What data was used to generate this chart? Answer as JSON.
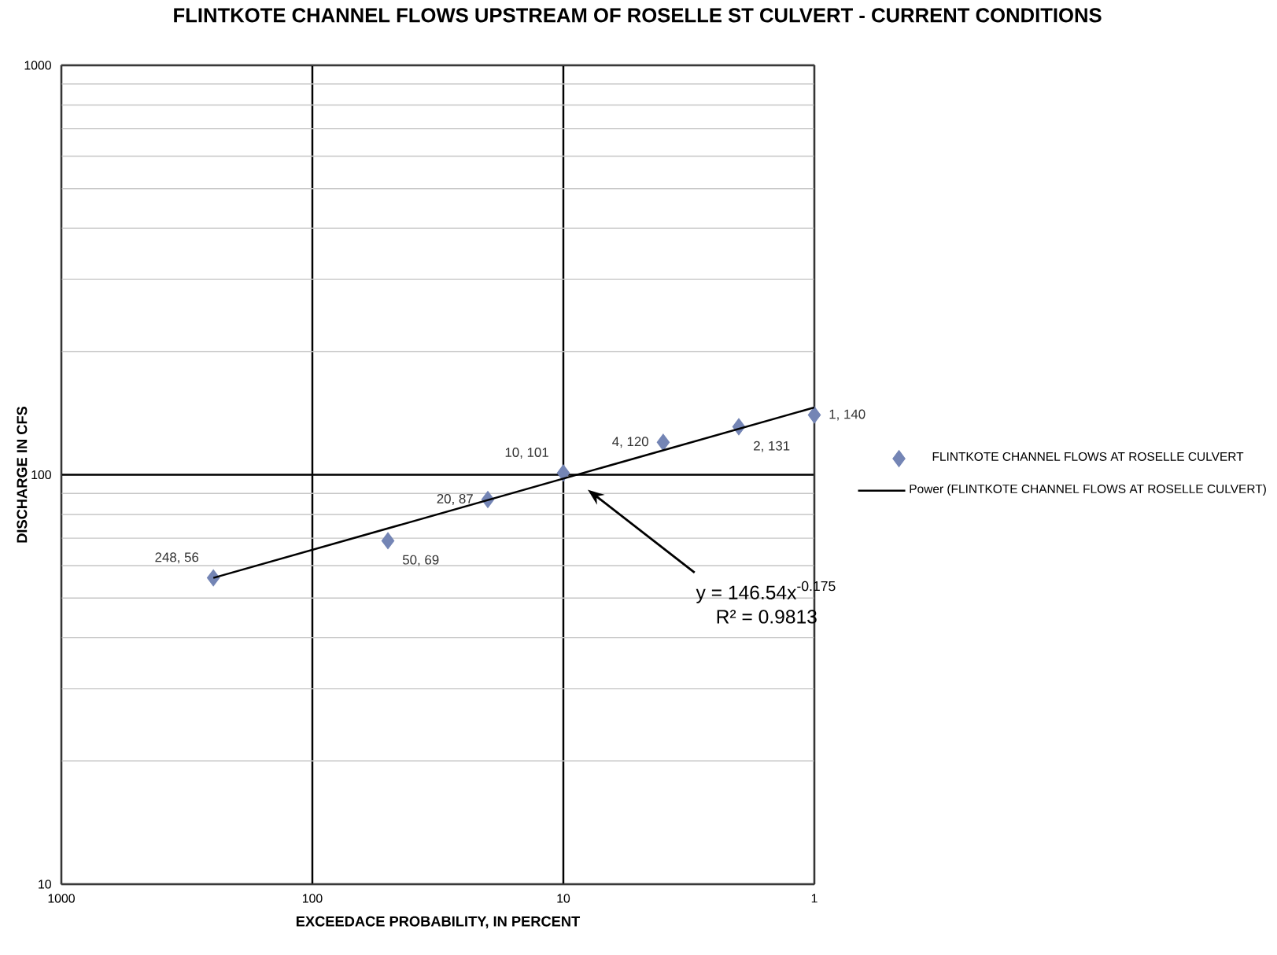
{
  "chart_data": {
    "type": "scatter",
    "title": "FLINTKOTE CHANNEL FLOWS UPSTREAM OF ROSELLE ST CULVERT - CURRENT CONDITIONS",
    "xlabel": "EXCEEDACE PROBABILITY, IN PERCENT",
    "ylabel": "DISCHARGE IN CFS",
    "log": "xy",
    "xlim": [
      1000,
      1
    ],
    "xticks": [
      1000,
      100,
      10,
      1
    ],
    "ylim": [
      10,
      1000
    ],
    "yticks": [
      10,
      100,
      1000
    ],
    "grid": true,
    "legend": "right",
    "series": [
      {
        "name": "FLINTKOTE CHANNEL FLOWS AT ROSELLE CULVERT",
        "marker": "diamond",
        "color": "#7485b5",
        "x": [
          248,
          50,
          20,
          10,
          4,
          2,
          1
        ],
        "values": [
          56,
          69,
          87,
          101,
          120,
          131,
          140
        ],
        "value_labels": [
          "248, 56",
          "50, 69",
          "20, 87",
          "10, 101",
          "4, 120",
          "2, 131",
          "1, 140"
        ]
      },
      {
        "name": "Power (FLINTKOTE CHANNEL FLOWS AT ROSELLE CULVERT)",
        "type": "line",
        "color": "#000000",
        "x": [
          248,
          1
        ],
        "values": [
          56,
          146
        ]
      }
    ],
    "annotations": [
      "y = 146.54x$^{-0.175}$",
      "R² = 0.9813"
    ]
  }
}
